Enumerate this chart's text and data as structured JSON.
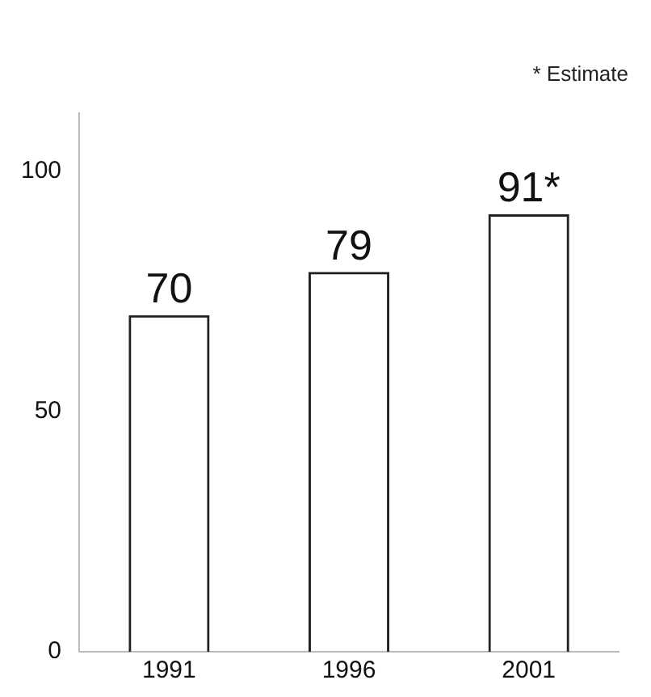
{
  "chart_data": {
    "type": "bar",
    "categories": [
      "1991",
      "1996",
      "2001"
    ],
    "values": [
      70,
      79,
      91
    ],
    "value_labels": [
      "70",
      "79",
      "91*"
    ],
    "color": "#222222",
    "ylim": [
      0,
      112
    ],
    "yticks": [
      0,
      50,
      100
    ],
    "grid": false,
    "legend": false,
    "annotations": [
      "* Estimate"
    ]
  }
}
